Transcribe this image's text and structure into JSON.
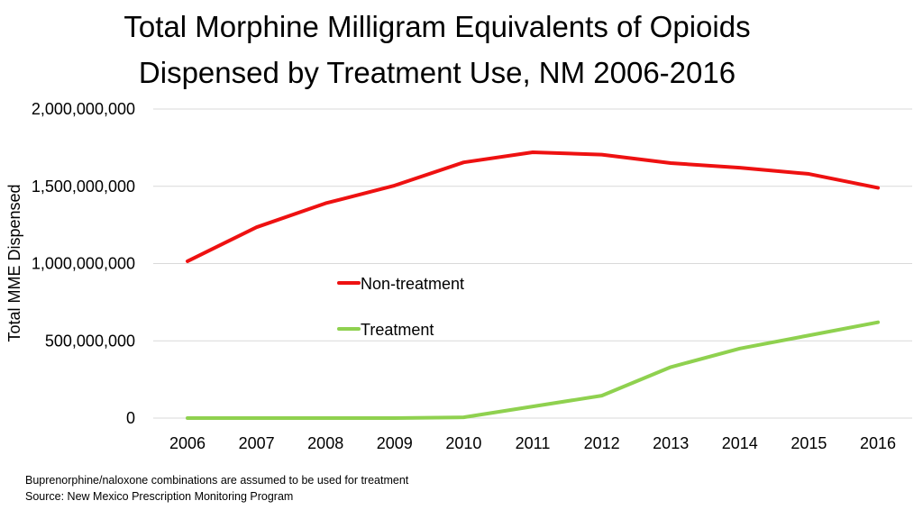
{
  "chart_data": {
    "type": "line",
    "title_lines": [
      "Total Morphine Milligram Equivalents of Opioids",
      "Dispensed by Treatment Use, NM 2006-2016"
    ],
    "xlabel": "",
    "ylabel": "Total MME Dispensed",
    "categories": [
      "2006",
      "2007",
      "2008",
      "2009",
      "2010",
      "2011",
      "2012",
      "2013",
      "2014",
      "2015",
      "2016"
    ],
    "ylim": [
      0,
      2000000000
    ],
    "yticks": [
      0,
      500000000,
      1000000000,
      1500000000,
      2000000000
    ],
    "ytick_labels": [
      "0",
      "500,000,000",
      "1,000,000,000",
      "1,500,000,000",
      "2,000,000,000"
    ],
    "grid": true,
    "legend_position": "center",
    "series": [
      {
        "name": "Non-treatment",
        "color": "#ee1111",
        "values": [
          1015000000,
          1235000000,
          1390000000,
          1505000000,
          1655000000,
          1720000000,
          1705000000,
          1650000000,
          1620000000,
          1580000000,
          1490000000
        ]
      },
      {
        "name": "Treatment",
        "color": "#8fd14f",
        "values": [
          0,
          0,
          0,
          0,
          5000000,
          75000000,
          145000000,
          330000000,
          450000000,
          535000000,
          620000000
        ]
      }
    ]
  },
  "footnotes": {
    "line1": "Buprenorphine/naloxone combinations are assumed to be used for treatment",
    "line2": "Source:  New Mexico Prescription Monitoring Program"
  }
}
